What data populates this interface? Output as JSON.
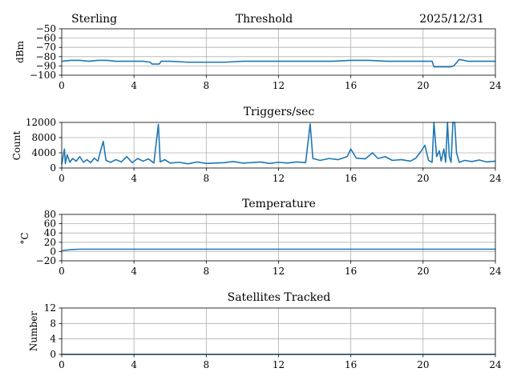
{
  "header": {
    "station": "Sterling",
    "date": "2025/12/31"
  },
  "colors": {
    "series": "#1f77b4",
    "grid": "#b0b0b0",
    "axis": "#000000"
  },
  "chart_data": [
    {
      "type": "line",
      "title": "Threshold",
      "xlabel": "",
      "ylabel": "dBm",
      "xlim": [
        0,
        24
      ],
      "ylim": [
        -100,
        -50
      ],
      "xticks": [
        "0",
        "4",
        "8",
        "12",
        "16",
        "20",
        "24"
      ],
      "yticks": [
        "−50",
        "−60",
        "−70",
        "−80",
        "−90",
        "−100"
      ],
      "grid": true,
      "series": [
        {
          "name": "Threshold",
          "x": [
            0,
            0.5,
            1,
            1.5,
            2,
            2.5,
            3,
            3.5,
            4,
            4.5,
            4.9,
            5.0,
            5.4,
            5.5,
            6,
            7,
            8,
            9,
            10,
            11,
            12,
            13,
            14,
            15,
            16,
            17,
            18,
            19,
            19.9,
            20.5,
            20.6,
            21.5,
            21.7,
            22.0,
            22.5,
            23,
            24
          ],
          "y": [
            -85,
            -84,
            -84,
            -85,
            -84,
            -84,
            -85,
            -85,
            -85,
            -85,
            -86,
            -88,
            -88,
            -85,
            -85,
            -86,
            -86,
            -86,
            -85,
            -85,
            -85,
            -85,
            -85,
            -85,
            -84,
            -84,
            -85,
            -85,
            -85,
            -85,
            -91,
            -91,
            -90,
            -83,
            -85,
            -85,
            -85
          ]
        }
      ]
    },
    {
      "type": "line",
      "title": "Triggers/sec",
      "xlabel": "",
      "ylabel": "Count",
      "xlim": [
        0,
        24
      ],
      "ylim": [
        0,
        12000
      ],
      "xticks": [
        "0",
        "4",
        "8",
        "12",
        "16",
        "20",
        "24"
      ],
      "yticks": [
        "0",
        "4000",
        "8000",
        "12000"
      ],
      "grid": true,
      "series": [
        {
          "name": "Triggers/sec",
          "x": [
            0,
            0.15,
            0.2,
            0.3,
            0.45,
            0.6,
            0.8,
            1.0,
            1.2,
            1.4,
            1.6,
            1.8,
            2.0,
            2.15,
            2.3,
            2.45,
            2.7,
            3.0,
            3.3,
            3.6,
            3.9,
            4.2,
            4.5,
            4.8,
            5.1,
            5.35,
            5.45,
            5.7,
            6.0,
            6.5,
            7.0,
            7.5,
            8.0,
            8.5,
            9.0,
            9.5,
            10.0,
            10.5,
            11.0,
            11.5,
            12.0,
            12.5,
            13.0,
            13.5,
            13.75,
            13.9,
            14.3,
            14.8,
            15.3,
            15.8,
            16.0,
            16.3,
            16.8,
            17.2,
            17.5,
            17.9,
            18.3,
            18.8,
            19.3,
            19.6,
            19.9,
            20.1,
            20.3,
            20.5,
            20.6,
            20.75,
            20.9,
            21.0,
            21.15,
            21.25,
            21.35,
            21.45,
            21.55,
            21.65,
            21.75,
            21.85,
            22.0,
            22.3,
            22.7,
            23.1,
            23.5,
            24
          ],
          "y": [
            1000,
            5000,
            1200,
            3500,
            1500,
            2500,
            1800,
            3000,
            1500,
            2200,
            1400,
            2600,
            1800,
            4500,
            7000,
            2000,
            1500,
            2200,
            1600,
            3000,
            1400,
            2500,
            1800,
            2400,
            1300,
            11500,
            1600,
            2200,
            1300,
            1500,
            1100,
            1600,
            1200,
            1300,
            1400,
            1700,
            1300,
            1400,
            1600,
            1200,
            1500,
            1300,
            1600,
            1400,
            11600,
            2500,
            2000,
            2500,
            2200,
            3000,
            5000,
            2600,
            2400,
            4000,
            2500,
            3000,
            2000,
            2200,
            1800,
            2600,
            4500,
            6000,
            2000,
            1500,
            12000,
            3000,
            4500,
            1800,
            5000,
            1500,
            12000,
            3000,
            1500,
            12000,
            12000,
            4000,
            1500,
            2000,
            1700,
            2100,
            1600,
            1800
          ]
        }
      ]
    },
    {
      "type": "line",
      "title": "Temperature",
      "xlabel": "",
      "ylabel": "°C",
      "xlim": [
        0,
        24
      ],
      "ylim": [
        -20,
        80
      ],
      "xticks": [
        "0",
        "4",
        "8",
        "12",
        "16",
        "20",
        "24"
      ],
      "yticks": [
        "−20",
        "0",
        "20",
        "40",
        "60",
        "80"
      ],
      "grid": true,
      "series": [
        {
          "name": "Temperature",
          "x": [
            0,
            0.5,
            1,
            24
          ],
          "y": [
            2,
            4,
            5,
            5
          ]
        }
      ]
    },
    {
      "type": "line",
      "title": "Satellites Tracked",
      "xlabel": "",
      "ylabel": "Number",
      "xlim": [
        0,
        24
      ],
      "ylim": [
        0,
        12
      ],
      "xticks": [
        "0",
        "4",
        "8",
        "12",
        "16",
        "20",
        "24"
      ],
      "yticks": [
        "0",
        "4",
        "8",
        "12"
      ],
      "grid": true,
      "series": [
        {
          "name": "Satellites Tracked",
          "x": [
            0,
            24
          ],
          "y": [
            0,
            0
          ]
        }
      ]
    }
  ]
}
